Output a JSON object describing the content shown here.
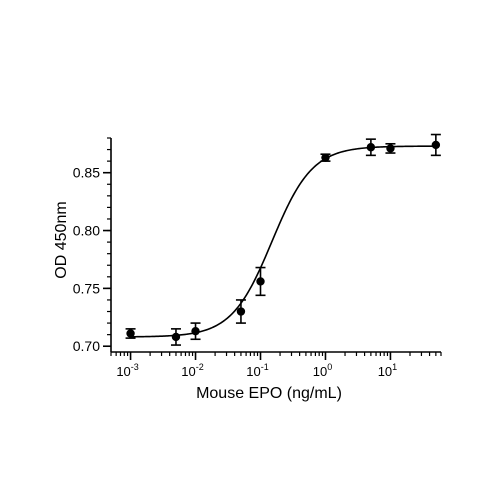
{
  "chart_data": {
    "type": "scatter",
    "title": "",
    "xlabel": "Mouse EPO (ng/mL)",
    "ylabel": "OD 450nm",
    "x_scale": "log",
    "xlim": [
      0.0005,
      60
    ],
    "ylim": [
      0.695,
      0.88
    ],
    "x_ticks": [
      {
        "value": 0.001,
        "base": "10",
        "exp": "-3"
      },
      {
        "value": 0.01,
        "base": "10",
        "exp": "-2"
      },
      {
        "value": 0.1,
        "base": "10",
        "exp": "-1"
      },
      {
        "value": 1,
        "base": "10",
        "exp": "0"
      },
      {
        "value": 10,
        "base": "10",
        "exp": "1"
      }
    ],
    "y_ticks": [
      {
        "value": 0.7,
        "label": "0.70"
      },
      {
        "value": 0.75,
        "label": "0.75"
      },
      {
        "value": 0.8,
        "label": "0.80"
      },
      {
        "value": 0.85,
        "label": "0.85"
      }
    ],
    "y_minor_step": 0.01,
    "grid": false,
    "legend": "none",
    "series": [
      {
        "points": [
          {
            "x": 0.001,
            "y": 0.711,
            "err": 0.004
          },
          {
            "x": 0.005,
            "y": 0.708,
            "err": 0.007
          },
          {
            "x": 0.01,
            "y": 0.713,
            "err": 0.007
          },
          {
            "x": 0.05,
            "y": 0.73,
            "err": 0.01
          },
          {
            "x": 0.1,
            "y": 0.756,
            "err": 0.012
          },
          {
            "x": 1,
            "y": 0.863,
            "err": 0.003
          },
          {
            "x": 5,
            "y": 0.872,
            "err": 0.007
          },
          {
            "x": 10,
            "y": 0.871,
            "err": 0.004
          },
          {
            "x": 50,
            "y": 0.874,
            "err": 0.009
          }
        ],
        "fit": {
          "model": "4PL",
          "bottom": 0.708,
          "top": 0.873,
          "ec50": 0.15,
          "hill": 1.4
        }
      }
    ],
    "colors": {
      "line": "#000000",
      "marker": "#000000"
    }
  }
}
